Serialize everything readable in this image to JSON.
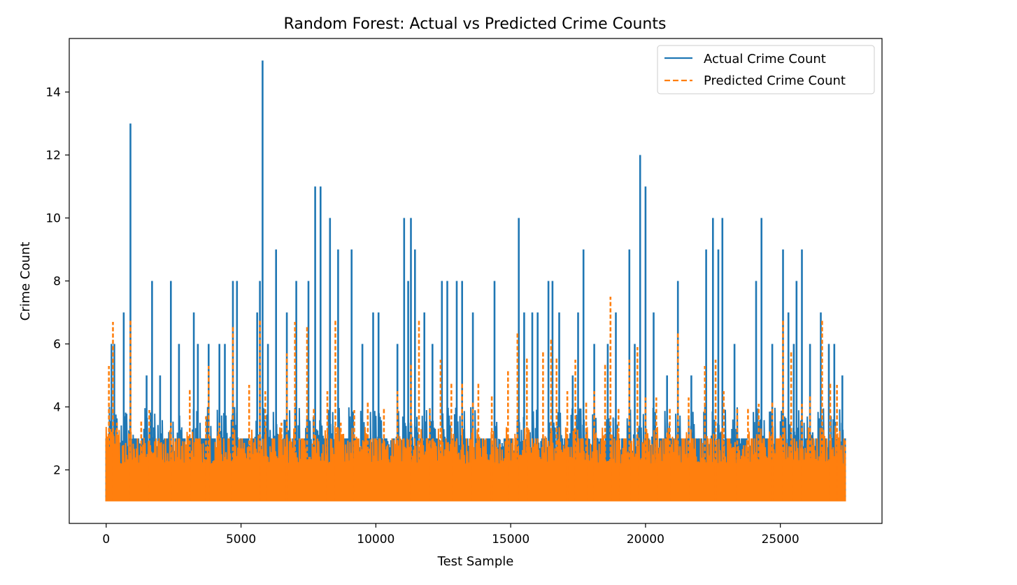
{
  "chart_data": {
    "type": "line",
    "title": "Random Forest: Actual vs Predicted Crime Counts",
    "xlabel": "Test Sample",
    "ylabel": "Crime Count",
    "xlim": [
      -1370,
      28770
    ],
    "ylim": [
      0.3,
      15.7
    ],
    "xticks": [
      0,
      5000,
      10000,
      15000,
      20000,
      25000
    ],
    "yticks": [
      2,
      4,
      6,
      8,
      10,
      12,
      14
    ],
    "grid": false,
    "legend_position": "top-right",
    "baseline": 1,
    "n_samples": 27400,
    "series": [
      {
        "name": "Actual Crime Count",
        "color": "#1f77b4",
        "style": "solid",
        "envelope": [
          [
            0,
            3
          ],
          [
            200,
            6
          ],
          [
            300,
            6
          ],
          [
            650,
            7
          ],
          [
            900,
            13
          ],
          [
            1500,
            5
          ],
          [
            1700,
            8
          ],
          [
            2000,
            5
          ],
          [
            2400,
            8
          ],
          [
            2700,
            6
          ],
          [
            3250,
            7
          ],
          [
            3400,
            6
          ],
          [
            3800,
            6
          ],
          [
            4200,
            6
          ],
          [
            4400,
            6
          ],
          [
            4700,
            8
          ],
          [
            4850,
            8
          ],
          [
            5600,
            7
          ],
          [
            5700,
            8
          ],
          [
            5800,
            15
          ],
          [
            6000,
            6
          ],
          [
            6300,
            9
          ],
          [
            6700,
            7
          ],
          [
            7050,
            8
          ],
          [
            7500,
            8
          ],
          [
            7750,
            11
          ],
          [
            7950,
            11
          ],
          [
            8300,
            10
          ],
          [
            8600,
            9
          ],
          [
            9100,
            9
          ],
          [
            9500,
            6
          ],
          [
            9900,
            7
          ],
          [
            10100,
            7
          ],
          [
            10800,
            6
          ],
          [
            11050,
            10
          ],
          [
            11200,
            8
          ],
          [
            11300,
            10
          ],
          [
            11450,
            9
          ],
          [
            11800,
            7
          ],
          [
            12100,
            6
          ],
          [
            12450,
            8
          ],
          [
            12650,
            8
          ],
          [
            13000,
            8
          ],
          [
            13200,
            8
          ],
          [
            13600,
            7
          ],
          [
            14400,
            8
          ],
          [
            15300,
            10
          ],
          [
            15500,
            7
          ],
          [
            15800,
            7
          ],
          [
            16000,
            7
          ],
          [
            16400,
            8
          ],
          [
            16550,
            8
          ],
          [
            16800,
            7
          ],
          [
            17300,
            5
          ],
          [
            17500,
            7
          ],
          [
            17700,
            9
          ],
          [
            18100,
            6
          ],
          [
            18600,
            6
          ],
          [
            18900,
            7
          ],
          [
            19400,
            9
          ],
          [
            19600,
            6
          ],
          [
            19800,
            12
          ],
          [
            20000,
            11
          ],
          [
            20300,
            7
          ],
          [
            20800,
            5
          ],
          [
            21200,
            8
          ],
          [
            21700,
            5
          ],
          [
            22250,
            9
          ],
          [
            22500,
            10
          ],
          [
            22700,
            9
          ],
          [
            22850,
            10
          ],
          [
            23300,
            6
          ],
          [
            24100,
            8
          ],
          [
            24300,
            10
          ],
          [
            24700,
            6
          ],
          [
            25100,
            9
          ],
          [
            25300,
            7
          ],
          [
            25500,
            6
          ],
          [
            25600,
            8
          ],
          [
            25800,
            9
          ],
          [
            26100,
            6
          ],
          [
            26500,
            7
          ],
          [
            26800,
            6
          ],
          [
            27000,
            6
          ],
          [
            27300,
            5
          ],
          [
            27400,
            3
          ]
        ]
      },
      {
        "name": "Predicted Crime Count",
        "color": "#ff7f0e",
        "style": "dashed",
        "envelope": [
          [
            0,
            3
          ],
          [
            100,
            5.3
          ],
          [
            250,
            6.7
          ],
          [
            400,
            3.5
          ],
          [
            900,
            6.8
          ],
          [
            1300,
            3.6
          ],
          [
            1600,
            3.9
          ],
          [
            2400,
            3.5
          ],
          [
            3100,
            4.6
          ],
          [
            3700,
            3.7
          ],
          [
            3800,
            5.3
          ],
          [
            4200,
            3.5
          ],
          [
            4700,
            6.6
          ],
          [
            5300,
            4.7
          ],
          [
            5700,
            6.8
          ],
          [
            5900,
            4.5
          ],
          [
            6500,
            3.5
          ],
          [
            6700,
            5.7
          ],
          [
            7000,
            6.7
          ],
          [
            7450,
            6.6
          ],
          [
            7700,
            4
          ],
          [
            8200,
            4.5
          ],
          [
            8500,
            6.8
          ],
          [
            8700,
            3.5
          ],
          [
            9200,
            3.9
          ],
          [
            9700,
            4.2
          ],
          [
            10300,
            4
          ],
          [
            10800,
            4.5
          ],
          [
            11300,
            5.4
          ],
          [
            11600,
            6.8
          ],
          [
            12000,
            4
          ],
          [
            12400,
            5.5
          ],
          [
            12800,
            4.8
          ],
          [
            13200,
            4.8
          ],
          [
            13600,
            4.2
          ],
          [
            13800,
            4.8
          ],
          [
            14300,
            4.4
          ],
          [
            14900,
            5.2
          ],
          [
            15250,
            6.4
          ],
          [
            15600,
            5.6
          ],
          [
            16200,
            5.8
          ],
          [
            16500,
            6.2
          ],
          [
            16700,
            5.6
          ],
          [
            17100,
            4.5
          ],
          [
            17400,
            5.5
          ],
          [
            17800,
            4.2
          ],
          [
            18100,
            4.5
          ],
          [
            18500,
            5.4
          ],
          [
            18700,
            7.5
          ],
          [
            19000,
            4
          ],
          [
            19400,
            5.5
          ],
          [
            19700,
            5.9
          ],
          [
            20000,
            4.3
          ],
          [
            20400,
            4.3
          ],
          [
            20900,
            4
          ],
          [
            21200,
            6.4
          ],
          [
            21600,
            4.3
          ],
          [
            22200,
            5.3
          ],
          [
            22600,
            5.5
          ],
          [
            22900,
            4.5
          ],
          [
            23400,
            4
          ],
          [
            23800,
            4
          ],
          [
            24200,
            4.1
          ],
          [
            24700,
            4.2
          ],
          [
            25100,
            6.8
          ],
          [
            25400,
            5.8
          ],
          [
            25800,
            4.1
          ],
          [
            26100,
            4.4
          ],
          [
            26550,
            6.8
          ],
          [
            26850,
            4.8
          ],
          [
            27100,
            4.7
          ],
          [
            27400,
            3
          ]
        ]
      }
    ]
  }
}
